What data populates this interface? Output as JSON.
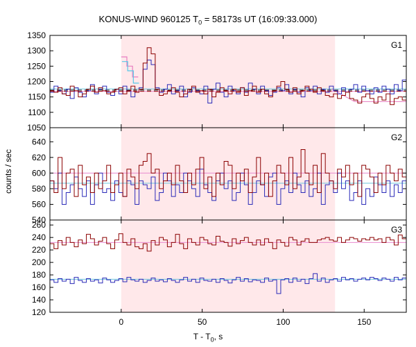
{
  "title": {
    "prefix": "KONUS-WIND 960125 T",
    "sub": "0",
    "suffix": " = 58173s UT (16:09:33.000)"
  },
  "axes": {
    "ylabel": "counts / sec",
    "xlabel_prefix": "T - T",
    "xlabel_sub": "0",
    "xlabel_suffix": ", s"
  },
  "colors": {
    "axis": "#000000",
    "shade": "#ffe8ea",
    "series_red": "#8b0000",
    "series_blue": "#2a2ab8",
    "bg_red_line": "#e88ad0",
    "bg_blue_line": "#6cc4dd",
    "dashed_red": "#a01010",
    "dashed_black": "#000000",
    "early_pink": "#e87cc0",
    "early_cyan": "#56c8e8"
  },
  "chart_data": {
    "type": "line",
    "xlim": [
      -44,
      176
    ],
    "xticks": [
      0,
      50,
      100,
      150
    ],
    "shaded_interval": [
      0,
      132
    ],
    "panels": [
      {
        "label": "G1",
        "ylim": [
          1050,
          1350
        ],
        "yticks": [
          1050,
          1100,
          1150,
          1200,
          1250,
          1300,
          1350
        ],
        "red_values": [
          1170,
          1165,
          1180,
          1160,
          1155,
          1185,
          1170,
          1150,
          1160,
          1175,
          1185,
          1165,
          1180,
          1170,
          1160,
          1165,
          1175,
          1180,
          1160,
          1170,
          1185,
          1165,
          1175,
          1260,
          1310,
          1290,
          1175,
          1155,
          1160,
          1170,
          1180,
          1165,
          1150,
          1160,
          1175,
          1185,
          1165,
          1170,
          1160,
          1175,
          1150,
          1165,
          1180,
          1170,
          1160,
          1175,
          1165,
          1180,
          1155,
          1170,
          1185,
          1165,
          1175,
          1160,
          1150,
          1170,
          1185,
          1200,
          1175,
          1165,
          1180,
          1160,
          1170,
          1185,
          1175,
          1165,
          1180,
          1170,
          1155,
          1150,
          1160,
          1145,
          1155,
          1165,
          1145,
          1140,
          1130,
          1150,
          1160,
          1145,
          1130,
          1150,
          1140,
          1160,
          1125,
          1145,
          1150,
          1140
        ],
        "blue_values": [
          1165,
          1185,
          1170,
          1160,
          1175,
          1145,
          1180,
          1165,
          1150,
          1170,
          1190,
          1160,
          1175,
          1185,
          1165,
          1155,
          1175,
          1160,
          1185,
          1170,
          1150,
          1165,
          1180,
          1240,
          1270,
          1255,
          1180,
          1165,
          1175,
          1190,
          1160,
          1170,
          1185,
          1150,
          1165,
          1180,
          1170,
          1160,
          1185,
          1130,
          1175,
          1195,
          1165,
          1150,
          1185,
          1170,
          1160,
          1180,
          1165,
          1195,
          1175,
          1160,
          1185,
          1170,
          1155,
          1165,
          1180,
          1170,
          1190,
          1160,
          1175,
          1165,
          1150,
          1180,
          1170,
          1185,
          1160,
          1175,
          1165,
          1185,
          1170,
          1160,
          1180,
          1165,
          1175,
          1190,
          1165,
          1185,
          1170,
          1160,
          1180,
          1165,
          1185,
          1175,
          1160,
          1190,
          1170,
          1205
        ],
        "red_level": 1168,
        "blue_level": 1176,
        "pink_level": 1135,
        "black_dashed_level": 1172,
        "early_pink_values": [
          1280,
          1250,
          1215
        ],
        "early_cyan_values": [
          1265,
          1235,
          1195
        ]
      },
      {
        "label": "G2",
        "ylim": [
          540,
          658
        ],
        "yticks": [
          540,
          560,
          580,
          600,
          620,
          640
        ],
        "red_values": [
          590,
          575,
          620,
          580,
          600,
          605,
          570,
          610,
          585,
          595,
          575,
          600,
          580,
          590,
          610,
          575,
          585,
          600,
          570,
          605,
          595,
          580,
          610,
          615,
          625,
          600,
          605,
          580,
          590,
          600,
          585,
          610,
          590,
          575,
          600,
          585,
          605,
          620,
          580,
          595,
          570,
          600,
          585,
          615,
          610,
          580,
          600,
          590,
          605,
          575,
          595,
          620,
          585,
          600,
          570,
          590,
          610,
          600,
          585,
          620,
          580,
          595,
          630,
          600,
          585,
          610,
          575,
          625,
          600,
          590,
          580,
          605,
          595,
          610,
          585,
          600,
          570,
          610,
          605,
          595,
          575,
          600,
          585,
          610,
          600,
          590,
          605,
          595
        ],
        "blue_values": [
          590,
          580,
          600,
          560,
          575,
          585,
          595,
          580,
          570,
          590,
          560,
          585,
          600,
          575,
          580,
          565,
          590,
          575,
          570,
          590,
          585,
          560,
          590,
          585,
          580,
          595,
          565,
          575,
          600,
          590,
          570,
          585,
          575,
          600,
          590,
          580,
          570,
          605,
          585,
          575,
          565,
          590,
          600,
          580,
          590,
          565,
          575,
          600,
          585,
          560,
          575,
          590,
          585,
          570,
          595,
          600,
          560,
          580,
          590,
          575,
          600,
          585,
          575,
          590,
          570,
          580,
          600,
          560,
          585,
          590,
          575,
          600,
          580,
          590,
          565,
          575,
          590,
          560,
          580,
          570,
          595,
          585,
          575,
          590,
          570,
          585,
          575,
          590
        ],
        "red_level": 600,
        "blue_level": 587
      },
      {
        "label": "G3",
        "ylim": [
          120,
          268
        ],
        "yticks": [
          120,
          140,
          160,
          180,
          200,
          220,
          240,
          260
        ],
        "red_values": [
          230,
          222,
          235,
          228,
          240,
          232,
          225,
          236,
          230,
          245,
          238,
          228,
          234,
          240,
          230,
          222,
          236,
          246,
          232,
          228,
          238,
          225,
          222,
          230,
          218,
          235,
          228,
          240,
          236,
          225,
          232,
          245,
          230,
          222,
          238,
          232,
          228,
          240,
          236,
          230,
          228,
          242,
          234,
          232,
          226,
          238,
          230,
          235,
          240,
          232,
          228,
          236,
          228,
          238,
          232,
          222,
          236,
          232,
          226,
          240,
          236,
          228,
          234,
          238,
          232,
          232,
          236,
          238,
          240,
          236,
          234,
          240,
          232,
          236,
          240,
          238,
          234,
          238,
          236,
          240,
          236,
          238,
          232,
          240,
          236,
          228,
          244,
          238
        ],
        "blue_values": [
          172,
          168,
          174,
          170,
          173,
          166,
          176,
          171,
          168,
          174,
          170,
          172,
          167,
          175,
          172,
          168,
          171,
          174,
          169,
          176,
          172,
          170,
          173,
          168,
          171,
          175,
          170,
          172,
          169,
          174,
          171,
          168,
          172,
          176,
          170,
          173,
          168,
          175,
          171,
          170,
          173,
          168,
          174,
          171,
          167,
          172,
          176,
          170,
          174,
          169,
          172,
          171,
          168,
          175,
          170,
          172,
          150,
          172,
          174,
          168,
          175,
          170,
          173,
          166,
          174,
          182,
          170,
          175,
          168,
          172,
          174,
          170,
          176,
          172,
          174,
          170,
          173,
          175,
          172,
          176,
          174,
          171,
          175,
          173,
          170,
          176,
          172,
          175
        ],
        "red_level": 232,
        "blue_level": 173
      }
    ]
  }
}
